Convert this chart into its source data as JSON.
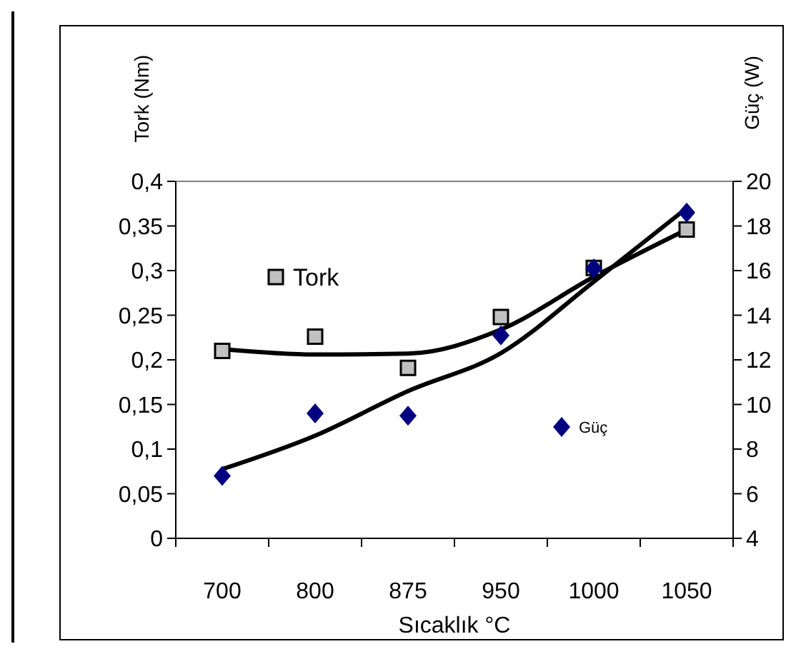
{
  "chart_data": {
    "type": "scatter",
    "xlabel": "Sıcaklık °C",
    "ylabel": "Tork (Nm)",
    "y2label": "Güç (W)",
    "categories": [
      "700",
      "800",
      "875",
      "950",
      "1000",
      "1050"
    ],
    "series": [
      {
        "name": "Tork",
        "marker": "square",
        "color": "#c0c0c0",
        "values": [
          0.21,
          0.226,
          0.191,
          0.248,
          0.303,
          0.346
        ]
      },
      {
        "name": "Güç",
        "marker": "diamond",
        "axis": "y2",
        "color": "#000080",
        "values": [
          6.8,
          9.6,
          9.5,
          13.1,
          16.1,
          18.6
        ]
      },
      {
        "type": "line",
        "color": "#000000",
        "values": [
          0.212,
          0.206,
          0.207,
          0.234,
          0.293,
          0.346
        ]
      },
      {
        "type": "line",
        "axis": "y2",
        "color": "#000000",
        "values": [
          7.1,
          8.6,
          10.6,
          12.3,
          15.5,
          18.8
        ]
      }
    ],
    "ylim": [
      0,
      0.4
    ],
    "yticks": [
      {
        "value": 0,
        "label": "0"
      },
      {
        "value": 0.05,
        "label": "0,05"
      },
      {
        "value": 0.1,
        "label": "0,1"
      },
      {
        "value": 0.15,
        "label": "0,15"
      },
      {
        "value": 0.2,
        "label": "0,2"
      },
      {
        "value": 0.25,
        "label": "0,25"
      },
      {
        "value": 0.3,
        "label": "0,3"
      },
      {
        "value": 0.35,
        "label": "0,35"
      },
      {
        "value": 0.4,
        "label": "0,4"
      }
    ],
    "y2lim": [
      4,
      20
    ],
    "y2ticks": [
      4,
      6,
      8,
      10,
      12,
      14,
      16,
      18,
      20
    ],
    "legend": "top left",
    "grid": false
  }
}
